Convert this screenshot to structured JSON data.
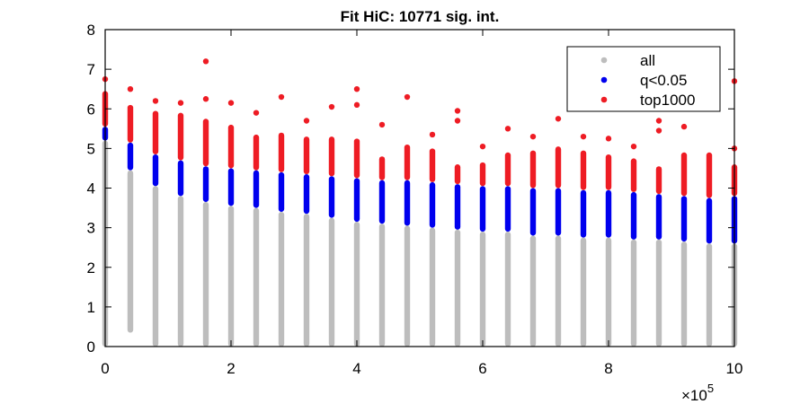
{
  "chart_data": {
    "type": "scatter",
    "title": "Fit HiC: 10771 sig. int.",
    "xlabel": "",
    "ylabel": "",
    "x_multiplier_label": "×10",
    "x_multiplier_exponent": "5",
    "xlim": [
      0,
      1000000
    ],
    "ylim": [
      0,
      8
    ],
    "x_ticks": [
      0,
      200000,
      400000,
      600000,
      800000,
      1000000
    ],
    "x_tick_labels": [
      "0",
      "2",
      "4",
      "6",
      "8",
      "10"
    ],
    "y_ticks": [
      0,
      1,
      2,
      3,
      4,
      5,
      6,
      7,
      8
    ],
    "y_tick_labels": [
      "0",
      "1",
      "2",
      "3",
      "4",
      "5",
      "6",
      "7",
      "8"
    ],
    "grid": false,
    "legend_position": "top-right",
    "series": [
      {
        "name": "all",
        "color": "#bdbdbd"
      },
      {
        "name": "q<0.05",
        "color": "#0000ee"
      },
      {
        "name": "top1000",
        "color": "#ee1c24"
      }
    ],
    "bins": [
      {
        "x": 0,
        "all": [
          0.0,
          5.2
        ],
        "q": [
          5.2,
          5.55
        ],
        "top": [
          5.55,
          6.45
        ],
        "top_outliers": [
          6.75
        ]
      },
      {
        "x": 40000,
        "all": [
          0.35,
          4.45
        ],
        "q": [
          4.45,
          5.15
        ],
        "top": [
          5.15,
          6.1
        ],
        "top_outliers": [
          6.5
        ]
      },
      {
        "x": 80000,
        "all": [
          0.0,
          4.05
        ],
        "q": [
          4.05,
          4.85
        ],
        "top": [
          4.85,
          5.95
        ],
        "top_outliers": [
          6.2
        ]
      },
      {
        "x": 120000,
        "all": [
          0.0,
          3.8
        ],
        "q": [
          3.8,
          4.7
        ],
        "top": [
          4.7,
          5.9
        ],
        "top_outliers": [
          6.15
        ]
      },
      {
        "x": 160000,
        "all": [
          0.0,
          3.65
        ],
        "q": [
          3.65,
          4.55
        ],
        "top": [
          4.55,
          5.75
        ],
        "top_outliers": [
          6.25,
          7.2
        ]
      },
      {
        "x": 200000,
        "all": [
          0.0,
          3.55
        ],
        "q": [
          3.55,
          4.5
        ],
        "top": [
          4.5,
          5.6
        ],
        "top_outliers": [
          6.15
        ]
      },
      {
        "x": 240000,
        "all": [
          0.0,
          3.5
        ],
        "q": [
          3.5,
          4.45
        ],
        "top": [
          4.45,
          5.35
        ],
        "top_outliers": [
          5.9
        ]
      },
      {
        "x": 280000,
        "all": [
          0.0,
          3.4
        ],
        "q": [
          3.4,
          4.4
        ],
        "top": [
          4.4,
          5.4
        ],
        "top_outliers": [
          6.3
        ]
      },
      {
        "x": 320000,
        "all": [
          0.0,
          3.35
        ],
        "q": [
          3.35,
          4.35
        ],
        "top": [
          4.35,
          5.3
        ],
        "top_outliers": [
          5.7
        ]
      },
      {
        "x": 360000,
        "all": [
          0.0,
          3.25
        ],
        "q": [
          3.25,
          4.3
        ],
        "top": [
          4.3,
          5.3
        ],
        "top_outliers": [
          6.05
        ]
      },
      {
        "x": 400000,
        "all": [
          0.0,
          3.15
        ],
        "q": [
          3.15,
          4.25
        ],
        "top": [
          4.25,
          5.25
        ],
        "top_outliers": [
          6.1,
          6.5
        ]
      },
      {
        "x": 440000,
        "all": [
          0.0,
          3.1
        ],
        "q": [
          3.1,
          4.2
        ],
        "top": [
          4.2,
          4.8
        ],
        "top_outliers": [
          5.6
        ]
      },
      {
        "x": 480000,
        "all": [
          0.0,
          3.05
        ],
        "q": [
          3.05,
          4.2
        ],
        "top": [
          4.2,
          5.1
        ],
        "top_outliers": [
          6.3
        ]
      },
      {
        "x": 520000,
        "all": [
          0.0,
          3.0
        ],
        "q": [
          3.0,
          4.15
        ],
        "top": [
          4.15,
          5.0
        ],
        "top_outliers": [
          5.35
        ]
      },
      {
        "x": 560000,
        "all": [
          0.0,
          2.95
        ],
        "q": [
          2.95,
          4.1
        ],
        "top": [
          4.1,
          4.6
        ],
        "top_outliers": [
          5.7,
          5.95
        ]
      },
      {
        "x": 600000,
        "all": [
          0.0,
          2.9
        ],
        "q": [
          2.9,
          4.05
        ],
        "top": [
          4.05,
          4.65
        ],
        "top_outliers": [
          5.05
        ]
      },
      {
        "x": 640000,
        "all": [
          0.0,
          2.9
        ],
        "q": [
          2.9,
          4.05
        ],
        "top": [
          4.05,
          4.9
        ],
        "top_outliers": [
          5.5
        ]
      },
      {
        "x": 680000,
        "all": [
          0.0,
          2.8
        ],
        "q": [
          2.8,
          4.0
        ],
        "top": [
          4.0,
          4.95
        ],
        "top_outliers": [
          5.3
        ]
      },
      {
        "x": 720000,
        "all": [
          0.0,
          2.8
        ],
        "q": [
          2.8,
          4.0
        ],
        "top": [
          4.0,
          5.05
        ],
        "top_outliers": [
          5.75
        ]
      },
      {
        "x": 760000,
        "all": [
          0.0,
          2.75
        ],
        "q": [
          2.75,
          3.95
        ],
        "top": [
          3.95,
          4.95
        ],
        "top_outliers": [
          5.3
        ]
      },
      {
        "x": 800000,
        "all": [
          0.0,
          2.75
        ],
        "q": [
          2.75,
          3.95
        ],
        "top": [
          3.95,
          4.85
        ],
        "top_outliers": [
          5.25
        ]
      },
      {
        "x": 840000,
        "all": [
          0.0,
          2.7
        ],
        "q": [
          2.7,
          3.9
        ],
        "top": [
          3.9,
          4.75
        ],
        "top_outliers": [
          5.05
        ]
      },
      {
        "x": 880000,
        "all": [
          0.0,
          2.7
        ],
        "q": [
          2.7,
          3.85
        ],
        "top": [
          3.85,
          4.55
        ],
        "top_outliers": [
          5.45,
          5.7
        ]
      },
      {
        "x": 920000,
        "all": [
          0.0,
          2.65
        ],
        "q": [
          2.65,
          3.8
        ],
        "top": [
          3.8,
          4.9
        ],
        "top_outliers": [
          5.55
        ]
      },
      {
        "x": 960000,
        "all": [
          0.0,
          2.6
        ],
        "q": [
          2.6,
          3.75
        ],
        "top": [
          3.75,
          4.9
        ],
        "top_outliers": []
      },
      {
        "x": 1000000,
        "all": [
          0.0,
          2.6
        ],
        "q": [
          2.6,
          3.8
        ],
        "top": [
          3.8,
          4.6
        ],
        "top_outliers": [
          5.0,
          6.7
        ]
      }
    ]
  }
}
